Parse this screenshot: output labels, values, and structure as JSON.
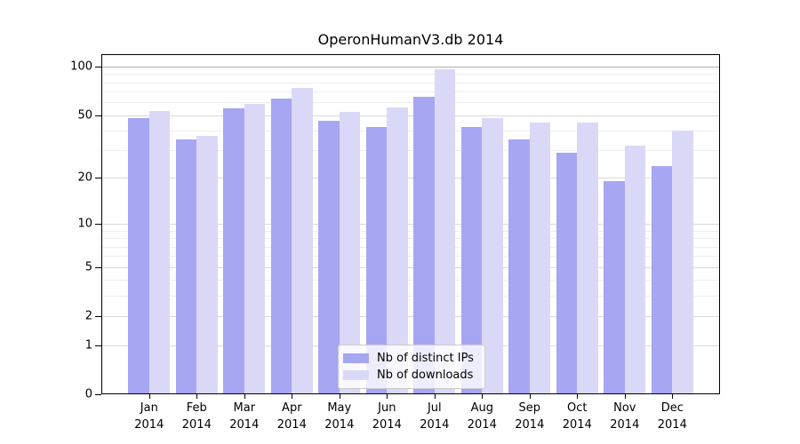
{
  "figure": {
    "background": "#ffffff",
    "text_color": "#000000"
  },
  "chart_data": {
    "type": "bar",
    "title": "OperonHumanV3.db 2014",
    "categories": [
      "Jan",
      "Feb",
      "Mar",
      "Apr",
      "May",
      "Jun",
      "Jul",
      "Aug",
      "Sep",
      "Oct",
      "Nov",
      "Dec"
    ],
    "category_year": "2014",
    "series": [
      {
        "name": "Nb of distinct IPs",
        "color": "#a6a6f2",
        "values": [
          48,
          35,
          55,
          63,
          46,
          42,
          65,
          42,
          35,
          29,
          19,
          24
        ]
      },
      {
        "name": "Nb of downloads",
        "color": "#d9d9f7",
        "values": [
          53,
          37,
          59,
          74,
          52,
          56,
          96,
          48,
          45,
          45,
          32,
          40
        ]
      }
    ],
    "xlabel": "",
    "ylabel": "",
    "yscale": "log10(1+v)",
    "ylim": [
      0,
      120
    ],
    "y_tick_labels": [
      "100",
      "50",
      "20",
      "10",
      "5",
      "2",
      "1",
      "0"
    ],
    "y_ticks": [
      100,
      50,
      20,
      10,
      5,
      2,
      1,
      0
    ],
    "y_minor_gridlines": [
      3,
      4,
      6,
      7,
      8,
      9,
      30,
      40,
      60,
      70,
      80,
      90
    ],
    "grid": "horizontal",
    "legend_position": "lower center",
    "colors": {
      "spine": "#000000",
      "grid_major": "#d9d9d9",
      "grid_minor": "#ededed",
      "grid_top": "#b0b0b0"
    }
  }
}
